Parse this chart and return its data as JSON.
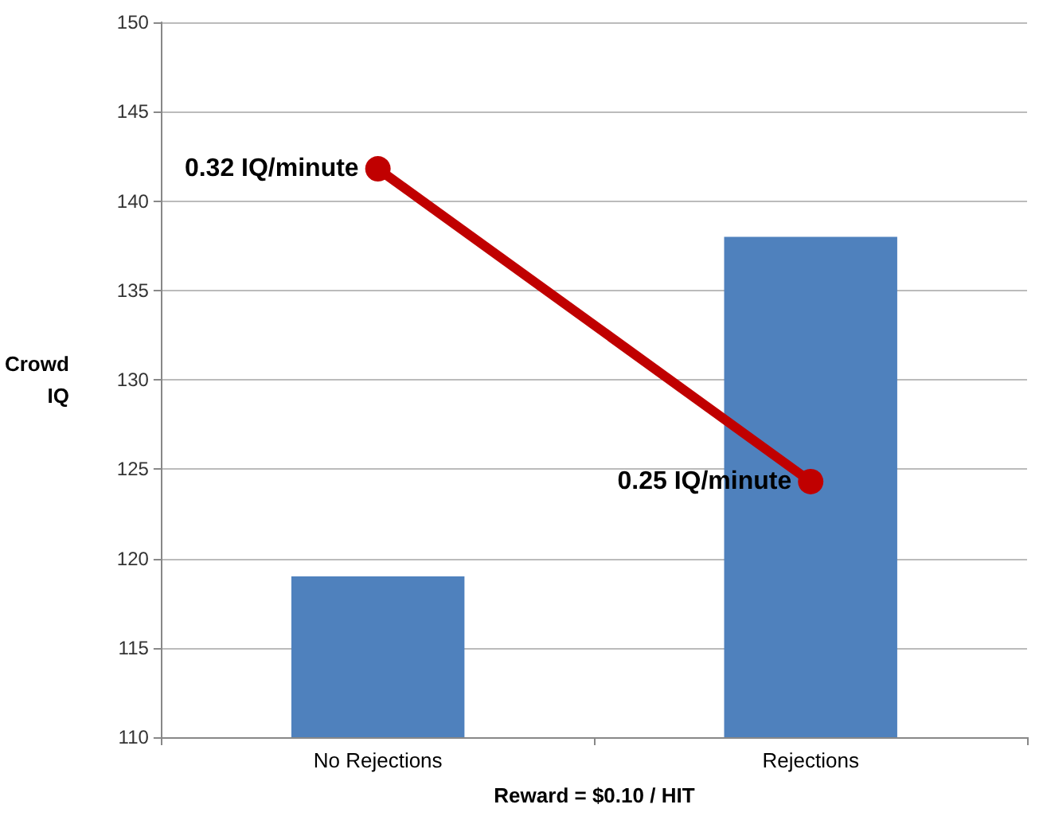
{
  "chart_data": {
    "type": "bar",
    "xlabel": "Reward = $0.10 / HIT",
    "ylabel": "Crowd\nIQ",
    "categories": [
      "No Rejections",
      "Rejections"
    ],
    "series": [
      {
        "color": "#4f81bd",
        "values": [
          119,
          138
        ]
      },
      {
        "type": "line",
        "color": "#c00000",
        "values": [
          141.8,
          124.3
        ],
        "marker": "circle"
      }
    ],
    "annotations": [
      {
        "text": "0.32 IQ/minute",
        "x": "No Rejections",
        "y": 141.8
      },
      {
        "text": "0.25 IQ/minute",
        "x": "Rejections",
        "y": 124.3
      }
    ],
    "ylim": [
      110,
      150
    ],
    "yticks": [
      110,
      115,
      120,
      125,
      130,
      135,
      140,
      145,
      150
    ],
    "grid": "y"
  }
}
